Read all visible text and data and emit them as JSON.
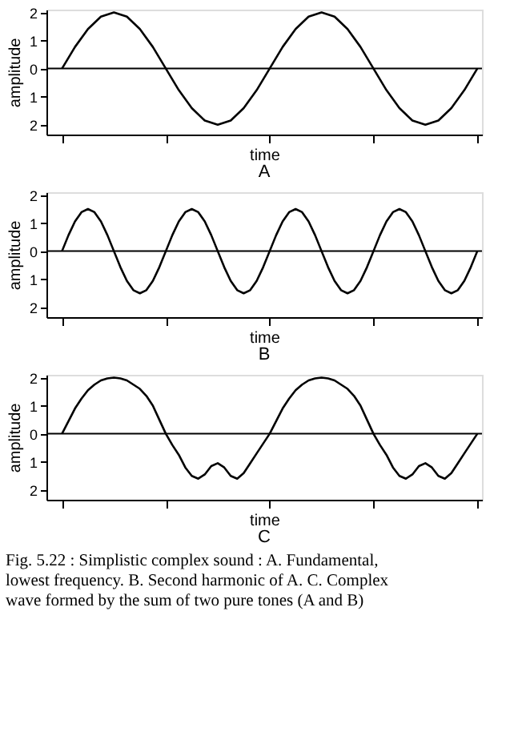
{
  "chart_data": [
    {
      "type": "line",
      "title": "A",
      "xlabel": "time",
      "ylabel": "amplitude",
      "tick_labels": "y",
      "grid": false,
      "marker": "none",
      "line_style": "solid",
      "ylim": [
        -2.35,
        2.1
      ],
      "yticks": [
        {
          "value": -2,
          "label": "2"
        },
        {
          "value": -1,
          "label": "1"
        },
        {
          "value": 0,
          "label": "0"
        },
        {
          "value": 1,
          "label": "1"
        },
        {
          "value": 2,
          "label": "2"
        }
      ],
      "ref_lines": [
        {
          "axis": "y",
          "value": 0,
          "color": "#000000"
        }
      ],
      "categories": [
        null,
        null,
        null,
        null,
        null,
        null,
        null,
        null,
        null,
        null,
        null,
        null,
        null,
        null,
        null,
        null,
        null,
        null,
        null,
        null,
        null,
        null,
        null,
        null,
        null,
        null,
        null,
        null,
        null,
        null,
        null,
        null,
        null
      ],
      "series": [
        {
          "color": "#000000",
          "values": [
            0,
            0.77,
            1.41,
            1.85,
            2,
            1.85,
            1.41,
            0.77,
            0,
            -0.77,
            -1.41,
            -1.85,
            -2,
            -1.85,
            -1.41,
            -0.77,
            0,
            0.77,
            1.41,
            1.85,
            2,
            1.85,
            1.41,
            0.77,
            0,
            -0.77,
            -1.41,
            -1.85,
            -2,
            -1.85,
            -1.41,
            -0.77,
            0
          ]
        }
      ]
    },
    {
      "type": "line",
      "title": "B",
      "xlabel": "time",
      "ylabel": "amplitude",
      "tick_labels": "y",
      "grid": false,
      "marker": "none",
      "line_style": "solid",
      "ylim": [
        -2.35,
        2.1
      ],
      "yticks": [
        {
          "value": -2,
          "label": "2"
        },
        {
          "value": -1,
          "label": "1"
        },
        {
          "value": 0,
          "label": "0"
        },
        {
          "value": 1,
          "label": "1"
        },
        {
          "value": 2,
          "label": "2"
        }
      ],
      "ref_lines": [
        {
          "axis": "y",
          "value": 0,
          "color": "#000000"
        }
      ],
      "categories": [
        null,
        null,
        null,
        null,
        null,
        null,
        null,
        null,
        null,
        null,
        null,
        null,
        null,
        null,
        null,
        null,
        null,
        null,
        null,
        null,
        null,
        null,
        null,
        null,
        null,
        null,
        null,
        null,
        null,
        null,
        null,
        null,
        null,
        null,
        null,
        null,
        null,
        null,
        null,
        null,
        null,
        null,
        null,
        null,
        null,
        null,
        null,
        null,
        null,
        null,
        null,
        null,
        null,
        null,
        null,
        null,
        null,
        null,
        null,
        null,
        null,
        null,
        null,
        null,
        null
      ],
      "series": [
        {
          "color": "#000000",
          "values": [
            0,
            0.57,
            1.06,
            1.39,
            1.5,
            1.39,
            1.06,
            0.57,
            0,
            -0.57,
            -1.06,
            -1.39,
            -1.5,
            -1.39,
            -1.06,
            -0.57,
            0,
            0.57,
            1.06,
            1.39,
            1.5,
            1.39,
            1.06,
            0.57,
            0,
            -0.57,
            -1.06,
            -1.39,
            -1.5,
            -1.39,
            -1.06,
            -0.57,
            0,
            0.57,
            1.06,
            1.39,
            1.5,
            1.39,
            1.06,
            0.57,
            0,
            -0.57,
            -1.06,
            -1.39,
            -1.5,
            -1.39,
            -1.06,
            -0.57,
            0,
            0.57,
            1.06,
            1.39,
            1.5,
            1.39,
            1.06,
            0.57,
            0,
            -0.57,
            -1.06,
            -1.39,
            -1.5,
            -1.39,
            -1.06,
            -0.57,
            0
          ]
        }
      ]
    },
    {
      "type": "line",
      "title": "C",
      "xlabel": "time",
      "ylabel": "amplitude",
      "tick_labels": "y",
      "grid": false,
      "marker": "none",
      "line_style": "solid",
      "ylim": [
        -2.35,
        2.1
      ],
      "yticks": [
        {
          "value": -2,
          "label": "2"
        },
        {
          "value": -1,
          "label": "1"
        },
        {
          "value": 0,
          "label": "0"
        },
        {
          "value": 1,
          "label": "1"
        },
        {
          "value": 2,
          "label": "2"
        }
      ],
      "ref_lines": [
        {
          "axis": "y",
          "value": 0,
          "color": "#000000"
        }
      ],
      "annotations": [
        "Fig. 5.22 : Simplistic complex sound : A. Fundamental, lowest frequency. B. Second harmonic of A. C. Complex wave formed by the sum of two pure tones (A and B)"
      ],
      "categories": [
        null,
        null,
        null,
        null,
        null,
        null,
        null,
        null,
        null,
        null,
        null,
        null,
        null,
        null,
        null,
        null,
        null,
        null,
        null,
        null,
        null,
        null,
        null,
        null,
        null,
        null,
        null,
        null,
        null,
        null,
        null,
        null,
        null,
        null,
        null,
        null,
        null,
        null,
        null,
        null,
        null,
        null,
        null,
        null,
        null,
        null,
        null,
        null,
        null,
        null,
        null,
        null,
        null,
        null,
        null,
        null,
        null,
        null,
        null,
        null,
        null,
        null,
        null,
        null,
        null
      ],
      "series": [
        {
          "color": "#000000",
          "values": [
            0,
            0.45,
            0.9,
            1.25,
            1.55,
            1.75,
            1.9,
            1.97,
            2,
            1.97,
            1.9,
            1.75,
            1.6,
            1.35,
            1.0,
            0.5,
            0,
            -0.4,
            -0.75,
            -1.2,
            -1.5,
            -1.6,
            -1.45,
            -1.15,
            -1.05,
            -1.2,
            -1.5,
            -1.6,
            -1.4,
            -1.05,
            -0.7,
            -0.35,
            0,
            0.45,
            0.9,
            1.25,
            1.55,
            1.75,
            1.9,
            1.97,
            2,
            1.97,
            1.9,
            1.75,
            1.6,
            1.35,
            1.0,
            0.5,
            0,
            -0.4,
            -0.75,
            -1.2,
            -1.5,
            -1.6,
            -1.45,
            -1.15,
            -1.05,
            -1.2,
            -1.5,
            -1.6,
            -1.4,
            -1.05,
            -0.7,
            -0.35,
            0
          ]
        }
      ]
    }
  ]
}
